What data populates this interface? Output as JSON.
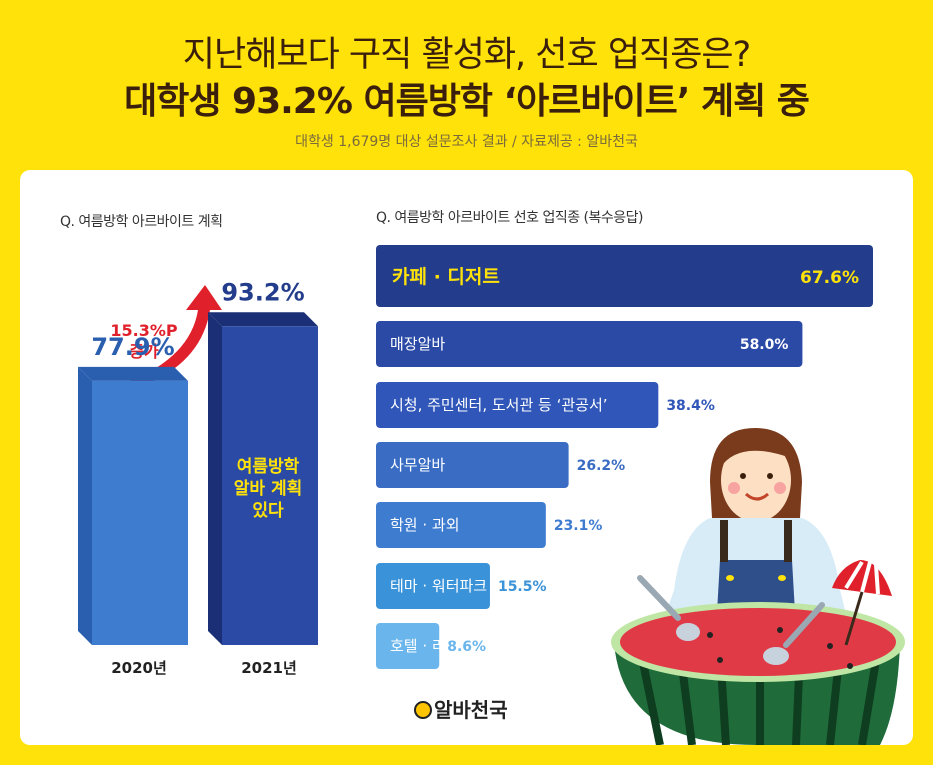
{
  "header": {
    "title_line1": "지난해보다 구직 활성화, 선호 업직종은?",
    "title_line2": "대학생 93.2% 여름방학 ‘아르바이트’ 계획 중",
    "source": "대학생 1,679명 대상 설문조사 결과 / 자료제공 : 알바천국"
  },
  "left_chart": {
    "question": "Q. 여름방학 아르바이트 계획",
    "increase_line1": "15.3%P",
    "increase_line2": "증가",
    "bar_label_line1": "여름방학",
    "bar_label_line2": "알바 계획",
    "bar_label_line3": "있다"
  },
  "right_chart": {
    "question": "Q. 여름방학 아르바이트 선호 업직종 (복수응답)"
  },
  "logo": {
    "text": "알바천국"
  },
  "colors": {
    "background": "#ffe20a",
    "title": "#3a1f0c",
    "bar_dark": "#233d8c",
    "highlight_text": "#ffe20a",
    "arrow": "#e0202a"
  },
  "chart_data": [
    {
      "type": "bar",
      "title": "Q. 여름방학 아르바이트 계획",
      "categories": [
        "2020년",
        "2021년"
      ],
      "values": [
        77.9,
        93.2
      ],
      "value_labels": [
        "77.9%",
        "93.2%"
      ],
      "ylim": [
        0,
        100
      ],
      "annotation": "15.3%P 증가"
    },
    {
      "type": "bar",
      "orientation": "horizontal",
      "title": "Q. 여름방학 아르바이트 선호 업직종 (복수응답)",
      "categories": [
        "카페 · 디저트",
        "매장알바",
        "시청, 주민센터, 도서관 등 ‘관공서’",
        "사무알바",
        "학원 · 과외",
        "테마 · 워터파크",
        "호텔 · 리조트"
      ],
      "values": [
        67.6,
        58.0,
        38.4,
        26.2,
        23.1,
        15.5,
        8.6
      ],
      "value_labels": [
        "67.6%",
        "58.0%",
        "38.4%",
        "26.2%",
        "23.1%",
        "15.5%",
        "8.6%"
      ],
      "colors": [
        "#233d8c",
        "#2a4aa6",
        "#2f56b8",
        "#3a6cc4",
        "#3e7cd0",
        "#3a92d8",
        "#6ab6ec"
      ]
    }
  ]
}
